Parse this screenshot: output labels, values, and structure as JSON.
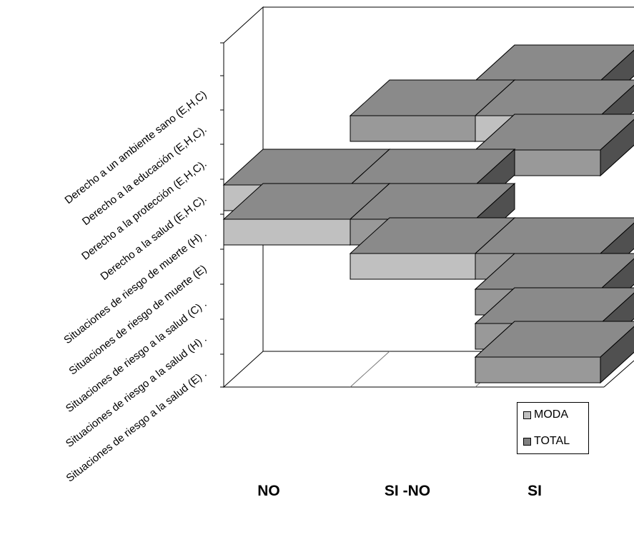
{
  "chart_data": {
    "type": "bar",
    "orientation": "horizontal",
    "stacked": true,
    "three_d": true,
    "categories": [
      "Situaciones de riesgo a la salud (E) .",
      "Situaciones de riesgo a la salud (H) .",
      "Situaciones de riesgo a la salud (C) .",
      "Situaciones de riesgo de muerte (E)",
      "Situaciones de riesgo de muerte (H) .",
      "Derecho a la salud (E,H,C).",
      "Derecho a la protección (E,H,C).",
      "Derecho a la educación (E,H,C).",
      "Derecho a un ambiente sano (E,H,C)"
    ],
    "x_categories": [
      "NO",
      "SI -NO",
      "SI"
    ],
    "x_scale": {
      "NO": 0,
      "SI -NO": 1,
      "SI": 2
    },
    "series": [
      {
        "name": "MODA",
        "values": [
          2,
          2,
          2,
          1,
          0,
          0,
          2,
          2,
          2
        ],
        "color": "#c0c0c0"
      },
      {
        "name": "TOTAL",
        "values": [
          2,
          2,
          2,
          1,
          1,
          1,
          2,
          1,
          2
        ],
        "color": "#808080"
      }
    ],
    "legend": {
      "position": "right",
      "entries": [
        "MODA",
        "TOTAL"
      ]
    },
    "colors": {
      "moda_front": "#c0c0c0",
      "total_front": "#999999",
      "top": "#8a8a8a",
      "side": "#505050"
    }
  }
}
